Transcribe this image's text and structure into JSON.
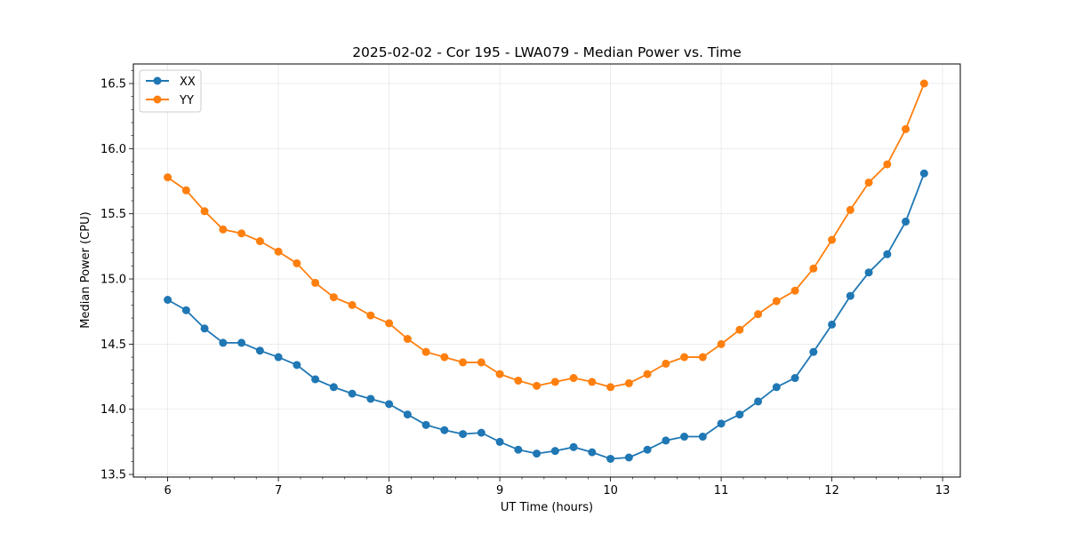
{
  "chart_data": {
    "type": "line",
    "title": "2025-02-02 - Cor 195 - LWA079 - Median Power vs. Time",
    "xlabel": "UT Time (hours)",
    "ylabel": "Median Power (CPU)",
    "xlim": [
      5.69,
      13.16
    ],
    "ylim": [
      13.48,
      16.65
    ],
    "xticks": [
      6,
      7,
      8,
      9,
      10,
      11,
      12,
      13
    ],
    "xtick_labels": [
      "6",
      "7",
      "8",
      "9",
      "10",
      "11",
      "12",
      "13"
    ],
    "yticks": [
      13.5,
      14.0,
      14.5,
      15.0,
      15.5,
      16.0,
      16.5
    ],
    "ytick_labels": [
      "13.5",
      "14.0",
      "14.5",
      "15.0",
      "15.5",
      "16.0",
      "16.5"
    ],
    "grid": true,
    "legend_position": "upper-left",
    "x": [
      6.0,
      6.1667,
      6.3333,
      6.5,
      6.6667,
      6.8333,
      7.0,
      7.1667,
      7.3333,
      7.5,
      7.6667,
      7.8333,
      8.0,
      8.1667,
      8.3333,
      8.5,
      8.6667,
      8.8333,
      9.0,
      9.1667,
      9.3333,
      9.5,
      9.6667,
      9.8333,
      10.0,
      10.1667,
      10.3333,
      10.5,
      10.6667,
      10.8333,
      11.0,
      11.1667,
      11.3333,
      11.5,
      11.6667,
      11.8333,
      12.0,
      12.1667,
      12.3333,
      12.5,
      12.6667,
      12.8333
    ],
    "series": [
      {
        "name": "XX",
        "color": "#1f77b4",
        "values": [
          14.84,
          14.76,
          14.62,
          14.51,
          14.51,
          14.45,
          14.4,
          14.34,
          14.23,
          14.17,
          14.12,
          14.08,
          14.04,
          13.96,
          13.88,
          13.84,
          13.81,
          13.82,
          13.75,
          13.69,
          13.66,
          13.68,
          13.71,
          13.67,
          13.62,
          13.63,
          13.69,
          13.76,
          13.79,
          13.79,
          13.89,
          13.96,
          14.06,
          14.17,
          14.24,
          14.44,
          14.65,
          14.87,
          15.05,
          15.19,
          15.44,
          15.81
        ]
      },
      {
        "name": "YY",
        "color": "#ff7f0e",
        "values": [
          15.78,
          15.68,
          15.52,
          15.38,
          15.35,
          15.29,
          15.21,
          15.12,
          14.97,
          14.86,
          14.8,
          14.72,
          14.66,
          14.54,
          14.44,
          14.4,
          14.36,
          14.36,
          14.27,
          14.22,
          14.18,
          14.21,
          14.24,
          14.21,
          14.17,
          14.2,
          14.27,
          14.35,
          14.4,
          14.4,
          14.5,
          14.61,
          14.73,
          14.83,
          14.91,
          15.08,
          15.3,
          15.53,
          15.74,
          15.88,
          16.15,
          16.5
        ]
      }
    ]
  }
}
